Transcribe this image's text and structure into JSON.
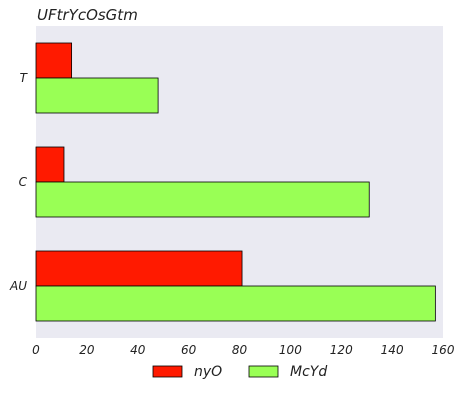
{
  "chart_data": {
    "type": "bar",
    "orientation": "horizontal",
    "title": "UFtrYcOsGtm",
    "xlabel": "",
    "ylabel": "",
    "categories": [
      "T",
      "C",
      "AU"
    ],
    "series": [
      {
        "name": "nyO",
        "color": "#ff1a00",
        "values": [
          14,
          11,
          81
        ]
      },
      {
        "name": "McYd",
        "color": "#99ff55",
        "values": [
          48,
          131,
          157
        ]
      }
    ],
    "xlim": [
      0,
      160
    ],
    "xticks": [
      "0",
      "20",
      "40",
      "60",
      "80",
      "100",
      "120",
      "140",
      "160"
    ],
    "grid": false,
    "legend": "bottom-center",
    "background": "#eaeaf2"
  }
}
